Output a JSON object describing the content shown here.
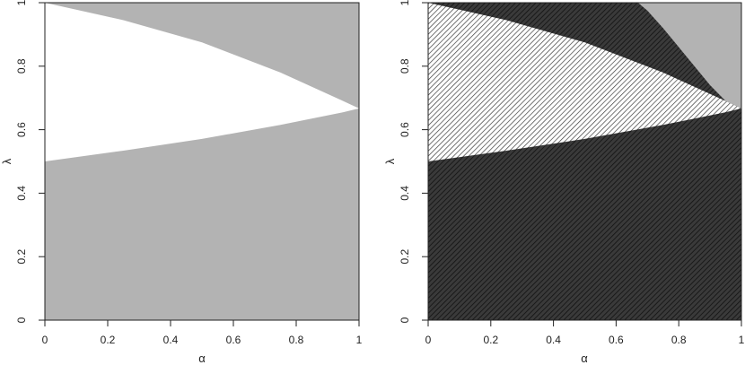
{
  "chart_data": [
    {
      "type": "area",
      "title": "",
      "xlabel": "α",
      "ylabel": "λ",
      "xlim": [
        0,
        1
      ],
      "ylim": [
        0,
        1
      ],
      "x_ticks": [
        "0",
        "0.2",
        "0.4",
        "0.6",
        "0.8",
        "1"
      ],
      "y_ticks": [
        "0",
        "0.2",
        "0.4",
        "0.6",
        "0.8",
        "1"
      ],
      "grid": false,
      "legend": "none",
      "background_color": "#b3b3b3",
      "regions": [
        {
          "fill": "#ffffff",
          "pattern": "none",
          "boundary": [
            [
              0,
              0.5
            ],
            [
              0.25,
              0.534
            ],
            [
              0.5,
              0.571
            ],
            [
              0.75,
              0.615
            ],
            [
              0.95,
              0.655
            ],
            [
              1,
              0.667
            ],
            [
              0.95,
              0.69
            ],
            [
              0.75,
              0.78
            ],
            [
              0.5,
              0.875
            ],
            [
              0.25,
              0.945
            ],
            [
              0,
              1
            ]
          ]
        }
      ]
    },
    {
      "type": "area",
      "title": "",
      "xlabel": "α",
      "ylabel": "λ",
      "xlim": [
        0,
        1
      ],
      "ylim": [
        0,
        1
      ],
      "x_ticks": [
        "0",
        "0.2",
        "0.4",
        "0.6",
        "0.8",
        "1"
      ],
      "y_ticks": [
        "0",
        "0.2",
        "0.4",
        "0.6",
        "0.8",
        "1"
      ],
      "grid": false,
      "legend": "none",
      "background_color": "#b3b3b3",
      "regions": [
        {
          "fill": "#3a3a3a",
          "pattern": "dense-diagonal-hatch",
          "boundary": [
            [
              0,
              0
            ],
            [
              1,
              0
            ],
            [
              1,
              0.667
            ],
            [
              0.95,
              0.69
            ],
            [
              0.9,
              0.74
            ],
            [
              0.85,
              0.8
            ],
            [
              0.8,
              0.86
            ],
            [
              0.75,
              0.92
            ],
            [
              0.7,
              0.975
            ],
            [
              0.67,
              1
            ],
            [
              0,
              1
            ]
          ]
        },
        {
          "fill": "#ffffff",
          "pattern": "diagonal-hatch",
          "boundary": [
            [
              0,
              0.5
            ],
            [
              0.25,
              0.534
            ],
            [
              0.5,
              0.571
            ],
            [
              0.75,
              0.615
            ],
            [
              0.95,
              0.655
            ],
            [
              1,
              0.667
            ],
            [
              0.95,
              0.69
            ],
            [
              0.75,
              0.78
            ],
            [
              0.5,
              0.875
            ],
            [
              0.25,
              0.945
            ],
            [
              0,
              1
            ]
          ]
        }
      ]
    }
  ]
}
